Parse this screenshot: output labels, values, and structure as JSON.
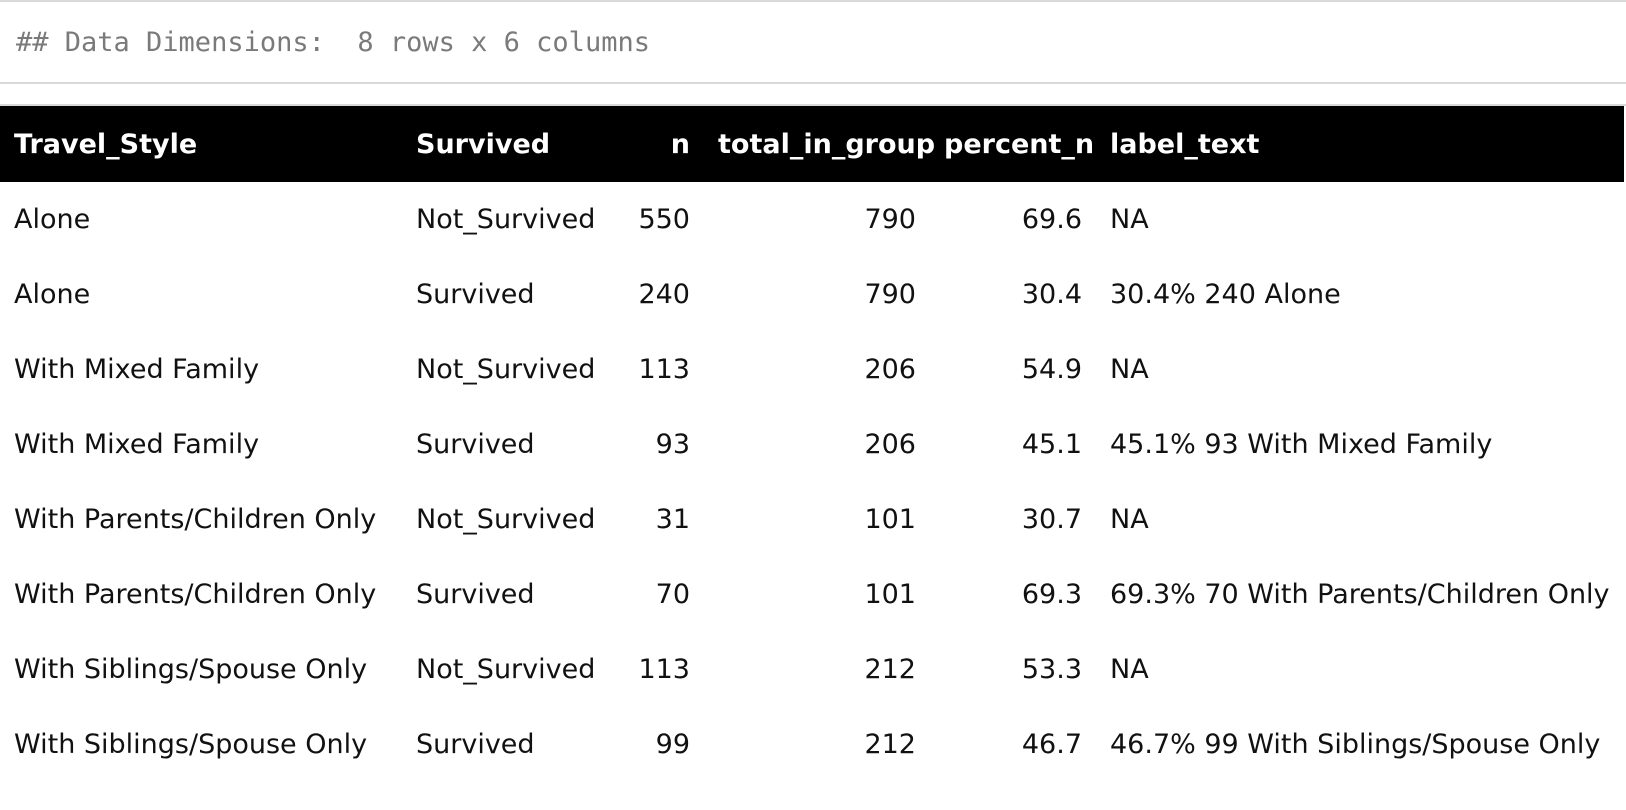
{
  "console": {
    "output_line": "## Data Dimensions:  8 rows x 6 columns"
  },
  "table": {
    "columns": [
      "Travel_Style",
      "Survived",
      "n",
      "total_in_group",
      "percent_n",
      "label_text"
    ],
    "rows": [
      [
        "Alone",
        "Not_Survived",
        "550",
        "790",
        "69.6",
        "NA"
      ],
      [
        "Alone",
        "Survived",
        "240",
        "790",
        "30.4",
        "30.4% 240 Alone"
      ],
      [
        "With Mixed Family",
        "Not_Survived",
        "113",
        "206",
        "54.9",
        "NA"
      ],
      [
        "With Mixed Family",
        "Survived",
        "93",
        "206",
        "45.1",
        "45.1% 93 With Mixed Family"
      ],
      [
        "With Parents/Children Only",
        "Not_Survived",
        "31",
        "101",
        "30.7",
        "NA"
      ],
      [
        "With Parents/Children Only",
        "Survived",
        "70",
        "101",
        "69.3",
        "69.3% 70 With Parents/Children Only"
      ],
      [
        "With Siblings/Spouse Only",
        "Not_Survived",
        "113",
        "212",
        "53.3",
        "NA"
      ],
      [
        "With Siblings/Spouse Only",
        "Survived",
        "99",
        "212",
        "46.7",
        "46.7% 99 With Siblings/Spouse Only"
      ]
    ]
  },
  "colors": {
    "header_bg": "#000000",
    "header_text": "#ffffff",
    "console_text": "#7a7a7a",
    "border": "#d9d9d9"
  }
}
